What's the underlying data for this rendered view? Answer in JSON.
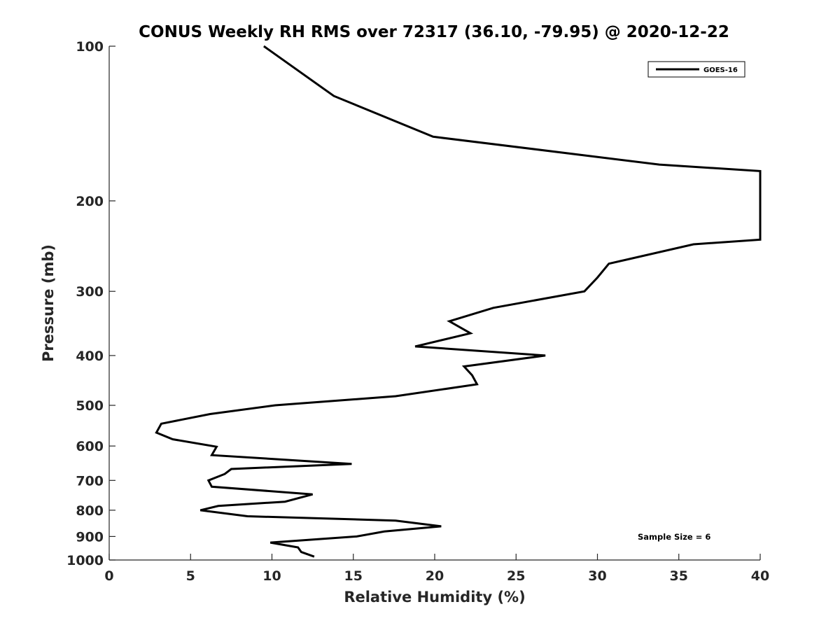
{
  "chart_data": {
    "type": "line",
    "title": "CONUS Weekly RH RMS over 72317 (36.10, -79.95) @ 2020-12-22",
    "xlabel": "Relative Humidity (%)",
    "ylabel": "Pressure (mb)",
    "xlim": [
      0,
      40
    ],
    "ylim": [
      1000,
      100
    ],
    "y_scale": "log",
    "y_reversed": true,
    "xticks": [
      0,
      5,
      10,
      15,
      20,
      25,
      30,
      35,
      40
    ],
    "xtick_labels": [
      "0",
      "5",
      "10",
      "15",
      "20",
      "25",
      "30",
      "35",
      "40"
    ],
    "yticks": [
      100,
      200,
      300,
      400,
      500,
      600,
      700,
      800,
      900,
      1000
    ],
    "ytick_labels": [
      "100",
      "200",
      "300",
      "400",
      "500",
      "600",
      "700",
      "800",
      "900",
      "1000"
    ],
    "grid": false,
    "legend_position": "top-right",
    "annotation": "Sample Size = 6",
    "series": [
      {
        "name": "GOES-16",
        "color": "#000000",
        "points": [
          [
            9.5,
            100
          ],
          [
            13.8,
            125
          ],
          [
            19.9,
            150
          ],
          [
            33.8,
            170
          ],
          [
            40.0,
            175
          ],
          [
            40.0,
            238
          ],
          [
            35.9,
            243
          ],
          [
            30.7,
            265
          ],
          [
            30.0,
            282
          ],
          [
            29.2,
            300
          ],
          [
            23.6,
            323
          ],
          [
            20.9,
            343
          ],
          [
            22.2,
            362
          ],
          [
            18.8,
            384
          ],
          [
            26.8,
            400
          ],
          [
            21.8,
            420
          ],
          [
            22.3,
            437
          ],
          [
            22.6,
            455
          ],
          [
            17.6,
            480
          ],
          [
            10.2,
            500
          ],
          [
            6.2,
            520
          ],
          [
            3.2,
            543
          ],
          [
            2.9,
            565
          ],
          [
            3.9,
            582
          ],
          [
            6.6,
            602
          ],
          [
            6.3,
            625
          ],
          [
            14.9,
            650
          ],
          [
            7.5,
            665
          ],
          [
            7.1,
            680
          ],
          [
            6.1,
            700
          ],
          [
            6.3,
            720
          ],
          [
            12.5,
            745
          ],
          [
            10.8,
            770
          ],
          [
            6.7,
            785
          ],
          [
            5.6,
            800
          ],
          [
            8.5,
            822
          ],
          [
            17.6,
            838
          ],
          [
            20.4,
            860
          ],
          [
            16.9,
            880
          ],
          [
            15.2,
            900
          ],
          [
            9.9,
            925
          ],
          [
            11.6,
            945
          ],
          [
            11.8,
            965
          ],
          [
            12.6,
            985
          ]
        ]
      }
    ]
  }
}
